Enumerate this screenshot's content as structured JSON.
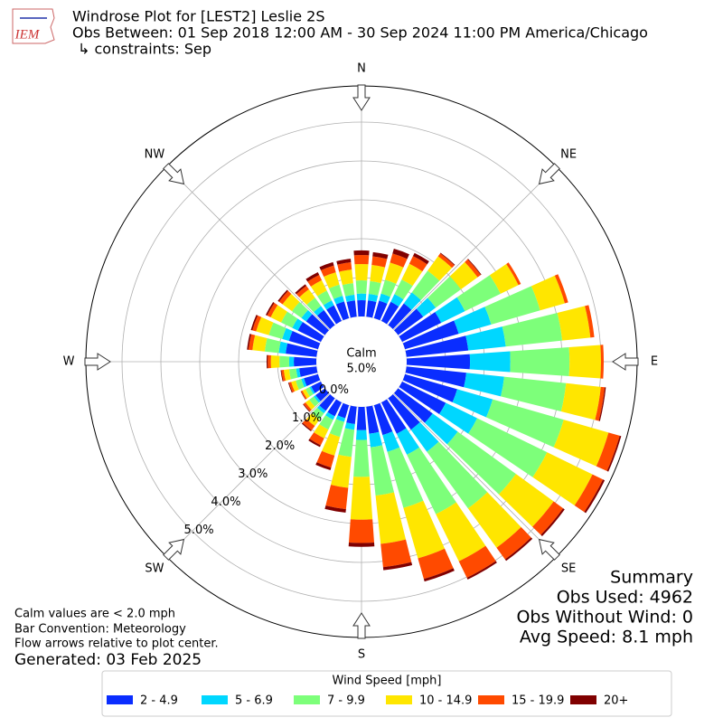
{
  "chart_data": {
    "type": "windrose",
    "title": "Windrose Plot for [LEST2] Leslie 2S",
    "subtitle": "Obs Between: 01 Sep 2018 12:00 AM - 30 Sep 2024 11:00 PM America/Chicago",
    "constraints": "↳ constraints: Sep",
    "compass": [
      "N",
      "NE",
      "E",
      "SE",
      "S",
      "SW",
      "W",
      "NW"
    ],
    "x": [
      0,
      10,
      20,
      30,
      40,
      50,
      60,
      70,
      80,
      90,
      100,
      110,
      120,
      130,
      140,
      150,
      160,
      170,
      180,
      190,
      200,
      210,
      220,
      230,
      240,
      250,
      260,
      270,
      280,
      290,
      300,
      310,
      320,
      330,
      340,
      350
    ],
    "ylim": [
      0,
      5.93
    ],
    "yticks": [
      {
        "value": 0,
        "label": "0.0%"
      },
      {
        "value": 1,
        "label": "1.0%"
      },
      {
        "value": 2,
        "label": "2.0%"
      },
      {
        "value": 3,
        "label": "3.0%"
      },
      {
        "value": 4,
        "label": "4.0%"
      },
      {
        "value": 5,
        "label": "5.0%"
      }
    ],
    "calm": {
      "label": "Calm",
      "value": 5,
      "value_label": "5.0%"
    },
    "legend_title": "Wind Speed [mph]",
    "series": [
      {
        "name": "2 - 4.9",
        "color": "#0a2dff",
        "values": [
          0.42,
          0.42,
          0.47,
          0.55,
          0.69,
          0.8,
          1.12,
          1.44,
          1.6,
          1.63,
          1.55,
          1.4,
          1.25,
          1.1,
          1.0,
          0.9,
          0.8,
          0.7,
          0.6,
          0.45,
          0.35,
          0.4,
          0.4,
          0.3,
          0.28,
          0.38,
          0.45,
          0.58,
          0.8,
          0.78,
          0.66,
          0.6,
          0.48,
          0.45,
          0.45,
          0.42
        ]
      },
      {
        "name": "5 - 6.9",
        "color": "#00d7ff",
        "values": [
          0.17,
          0.17,
          0.19,
          0.22,
          0.35,
          0.4,
          0.68,
          0.87,
          0.97,
          1.04,
          0.98,
          0.95,
          0.9,
          0.8,
          0.7,
          0.6,
          0.45,
          0.35,
          0.25,
          0.15,
          0.1,
          0.1,
          0.08,
          0.06,
          0.05,
          0.07,
          0.08,
          0.12,
          0.18,
          0.18,
          0.16,
          0.15,
          0.13,
          0.14,
          0.15,
          0.15
        ]
      },
      {
        "name": "7 - 9.9",
        "color": "#7dff7a",
        "values": [
          0.34,
          0.33,
          0.37,
          0.42,
          0.69,
          0.8,
          1.02,
          1.31,
          1.46,
          1.52,
          1.6,
          1.9,
          2.0,
          1.85,
          1.8,
          1.7,
          1.5,
          1.25,
          0.95,
          0.7,
          0.4,
          0.28,
          0.2,
          0.14,
          0.11,
          0.15,
          0.18,
          0.25,
          0.36,
          0.36,
          0.32,
          0.3,
          0.26,
          0.28,
          0.3,
          0.3
        ]
      },
      {
        "name": "10 - 14.9",
        "color": "#ffe600",
        "values": [
          0.42,
          0.42,
          0.46,
          0.45,
          0.46,
          0.53,
          0.51,
          0.66,
          0.73,
          0.81,
          0.9,
          1.2,
          1.3,
          1.2,
          1.25,
          1.35,
          1.35,
          1.25,
          1.1,
          0.8,
          0.5,
          0.25,
          0.2,
          0.12,
          0.09,
          0.12,
          0.14,
          0.22,
          0.32,
          0.34,
          0.3,
          0.3,
          0.27,
          0.3,
          0.33,
          0.35
        ]
      },
      {
        "name": "15 - 19.9",
        "color": "#ff4a00",
        "values": [
          0.23,
          0.22,
          0.24,
          0.22,
          0.09,
          0.1,
          0.07,
          0.09,
          0.1,
          0.07,
          0.1,
          0.3,
          0.3,
          0.3,
          0.37,
          0.47,
          0.55,
          0.6,
          0.6,
          0.55,
          0.32,
          0.2,
          0.14,
          0.06,
          0.04,
          0.06,
          0.06,
          0.08,
          0.1,
          0.1,
          0.1,
          0.11,
          0.11,
          0.15,
          0.18,
          0.19
        ]
      },
      {
        "name": "20+",
        "color": "#800000",
        "values": [
          0.12,
          0.11,
          0.13,
          0.09,
          0.02,
          0.02,
          0,
          0,
          0,
          0,
          0.03,
          0.04,
          0.05,
          0.05,
          0.05,
          0.05,
          0.07,
          0.08,
          0.1,
          0.09,
          0.07,
          0.05,
          0.03,
          0.02,
          0.01,
          0.02,
          0.02,
          0.03,
          0.04,
          0.04,
          0.04,
          0.04,
          0.05,
          0.08,
          0.09,
          0.09
        ]
      }
    ],
    "summary": {
      "title": "Summary",
      "lines": [
        "Obs Used: 4962",
        "Obs Without Wind: 0",
        "Avg Speed: 8.1 mph"
      ]
    },
    "notes": [
      "Calm values are < 2.0 mph",
      "Bar Convention: Meteorology",
      "Flow arrows relative to plot center."
    ],
    "generated": "Generated: 03 Feb 2025",
    "logo": "IEM"
  }
}
